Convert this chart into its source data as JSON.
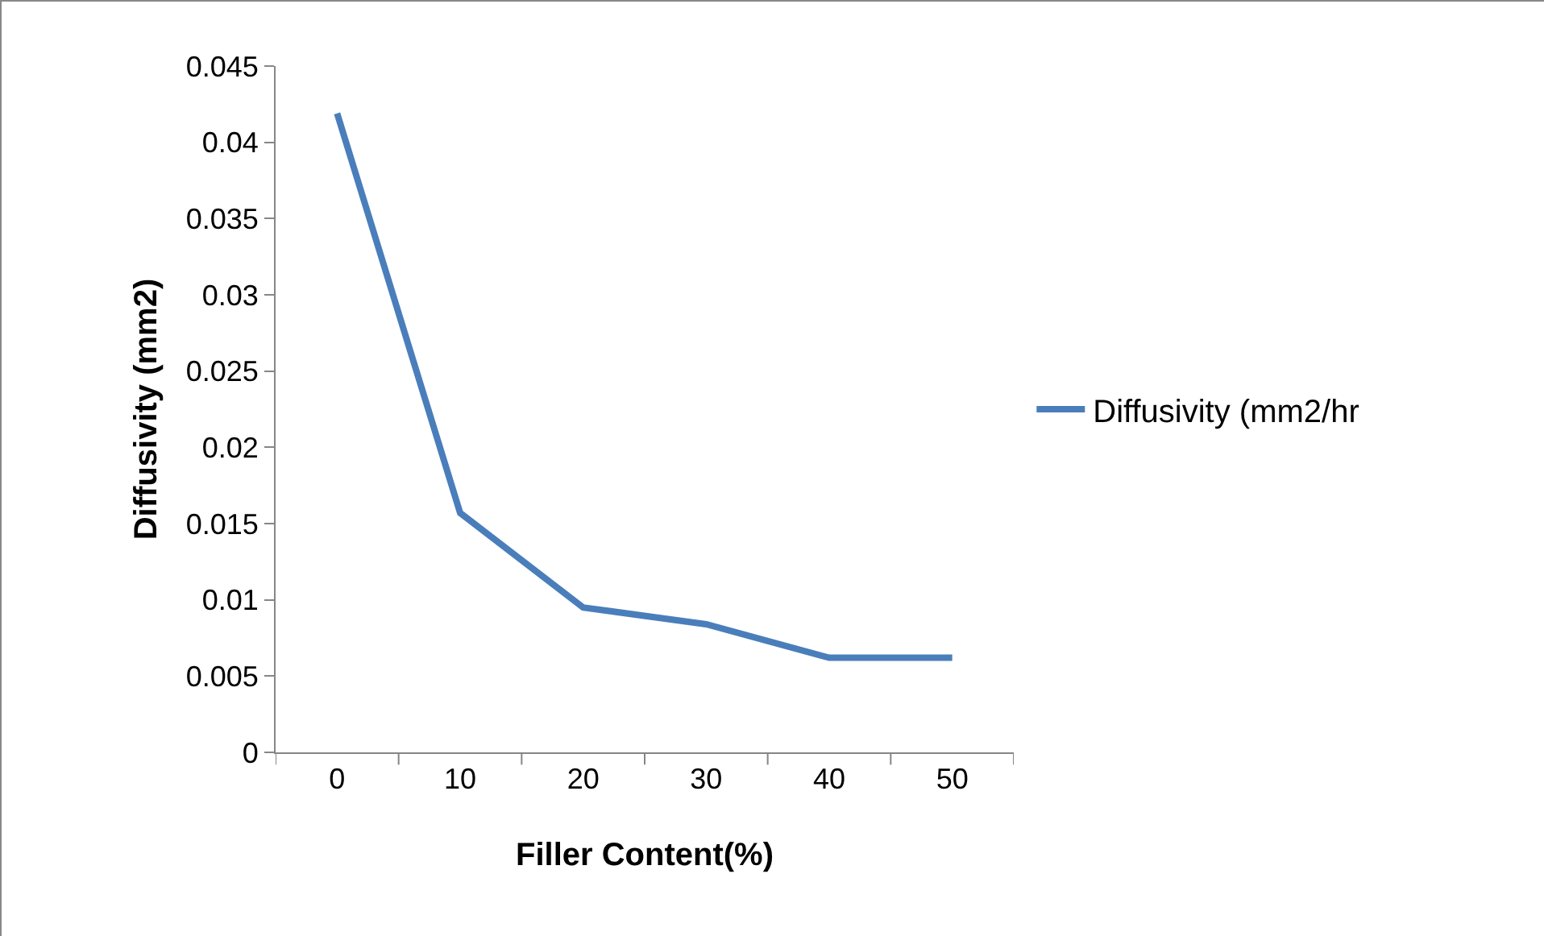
{
  "chart_data": {
    "type": "line",
    "xlabel": "Filler Content(%)",
    "ylabel": "Diffusivity (mm2)",
    "categories": [
      "0",
      "10",
      "20",
      "30",
      "40",
      "50"
    ],
    "series": [
      {
        "name": "Diffusivity (mm2/hr",
        "color": "#4a7ebb",
        "values": [
          0.0419,
          0.0157,
          0.0095,
          0.0084,
          0.0062,
          0.0062
        ]
      }
    ],
    "ylim": [
      0,
      0.045
    ],
    "yticks": [
      0,
      0.005,
      0.01,
      0.015,
      0.02,
      0.025,
      0.03,
      0.035,
      0.04,
      0.045
    ],
    "grid": false,
    "legend": "right",
    "marker": "none",
    "line_style": "solid"
  }
}
